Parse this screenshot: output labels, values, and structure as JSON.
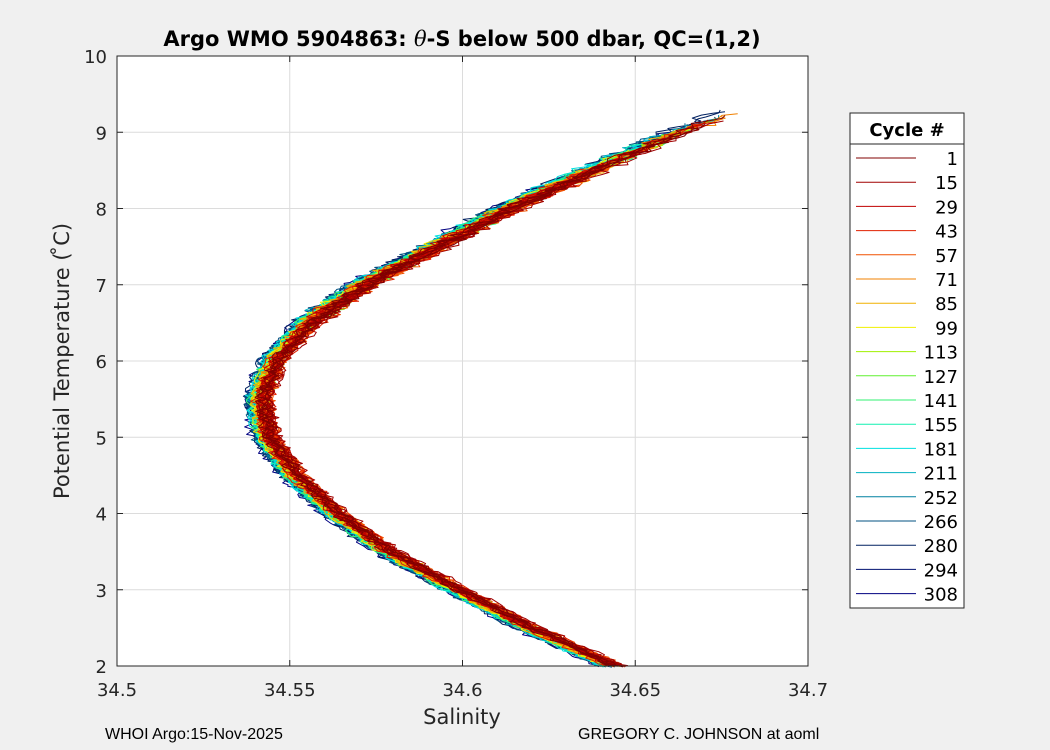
{
  "chart_data": {
    "type": "line",
    "title": "Argo WMO 5904863: θ-S below 500 dbar,  QC=(1,2)",
    "title_prefix": "Argo WMO 5904863: ",
    "title_theta": "θ",
    "title_suffix": "-S below 500 dbar,  QC=(1,2)",
    "xlabel": "Salinity",
    "ylabel": "Potential Temperature ( ̊C)",
    "xlim": [
      34.5,
      34.7
    ],
    "ylim": [
      2,
      10
    ],
    "xticks": [
      34.5,
      34.55,
      34.6,
      34.65,
      34.7
    ],
    "xtick_labels": [
      "34.5",
      "34.55",
      "34.6",
      "34.65",
      "34.7"
    ],
    "yticks": [
      2,
      3,
      4,
      5,
      6,
      7,
      8,
      9,
      10
    ],
    "ytick_labels": [
      "2",
      "3",
      "4",
      "5",
      "6",
      "7",
      "8",
      "9",
      "10"
    ],
    "grid": true,
    "legend_placement": "outside-right",
    "legend_title": "Cycle #",
    "profile_shape": {
      "theta": [
        2.0,
        2.5,
        3.0,
        3.5,
        4.0,
        4.5,
        5.0,
        5.5,
        6.0,
        6.5,
        7.0,
        7.5,
        8.0,
        8.5,
        9.0,
        9.3
      ],
      "salinity": [
        34.643,
        34.619,
        34.598,
        34.578,
        34.563,
        34.551,
        34.543,
        34.541,
        34.545,
        34.555,
        34.571,
        34.592,
        34.613,
        34.637,
        34.662,
        34.68
      ]
    },
    "series": [
      {
        "name": "1",
        "color": "#800000"
      },
      {
        "name": "15",
        "color": "#a00000"
      },
      {
        "name": "29",
        "color": "#c00000"
      },
      {
        "name": "43",
        "color": "#e02000"
      },
      {
        "name": "57",
        "color": "#f05000"
      },
      {
        "name": "71",
        "color": "#f08000"
      },
      {
        "name": "85",
        "color": "#f0b000"
      },
      {
        "name": "99",
        "color": "#f0f000"
      },
      {
        "name": "113",
        "color": "#a0f000"
      },
      {
        "name": "127",
        "color": "#60f030"
      },
      {
        "name": "141",
        "color": "#30f070"
      },
      {
        "name": "155",
        "color": "#10f0b0"
      },
      {
        "name": "181",
        "color": "#00e0e0"
      },
      {
        "name": "211",
        "color": "#00b0c0"
      },
      {
        "name": "252",
        "color": "#0080a0"
      },
      {
        "name": "266",
        "color": "#005080"
      },
      {
        "name": "280",
        "color": "#002060"
      },
      {
        "name": "294",
        "color": "#001070"
      },
      {
        "name": "308",
        "color": "#000080"
      }
    ]
  },
  "footer": {
    "left": "WHOI Argo:15-Nov-2025",
    "right": "GREGORY C. JOHNSON at aoml"
  }
}
